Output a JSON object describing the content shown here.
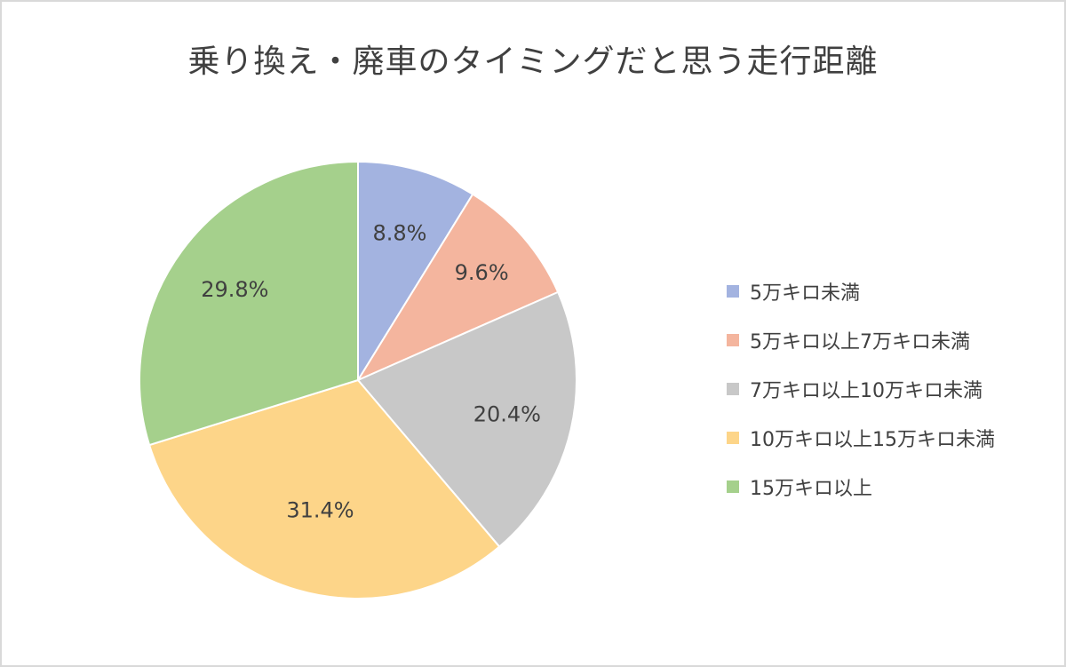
{
  "chart_data": {
    "type": "pie",
    "title": "乗り換え・廃車のタイミングだと思う走行距離",
    "categories": [
      "5万キロ未満",
      "5万キロ以上7万キロ未満",
      "7万キロ以上10万キロ未満",
      "10万キロ以上15万キロ未満",
      "15万キロ以上"
    ],
    "values": [
      8.8,
      9.6,
      20.4,
      31.4,
      29.8
    ],
    "data_labels": [
      "8.8%",
      "9.6%",
      "20.4%",
      "31.4%",
      "29.8%"
    ],
    "unit": "%",
    "colors": [
      "#a3b3e0",
      "#f4b59e",
      "#c8c8c8",
      "#fdd589",
      "#a5d08c"
    ],
    "start_angle": "12 o'clock",
    "direction": "clockwise",
    "legend_position": "right"
  }
}
